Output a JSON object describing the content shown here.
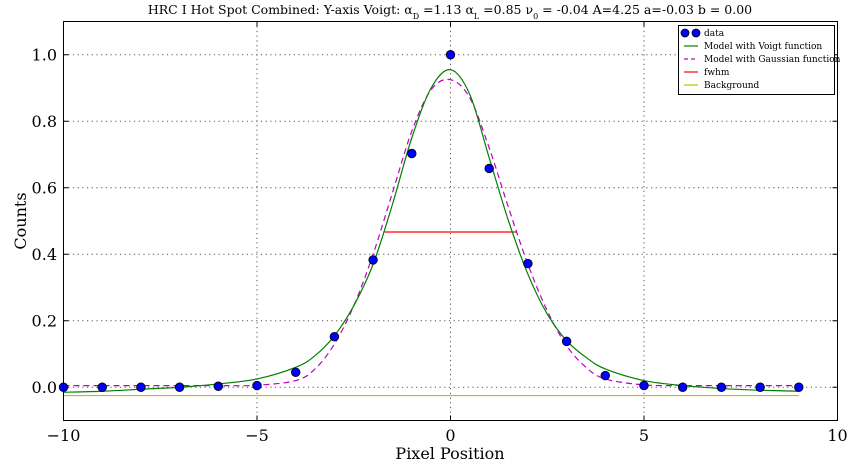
{
  "chart_data": {
    "type": "line",
    "title": "HRC I Hot Spot Combined: Y-axis  Voigt: α_D =1.13 α_L =0.85 ν_0 = -0.04 A=4.25  a=-0.03 b = 0.00",
    "title_parts": {
      "prefix": "HRC I Hot Spot Combined: Y-axis  Voigt: ",
      "alpha_d_symbol": "α",
      "alpha_d_sub": "D",
      "alpha_d_value": " =1.13 ",
      "alpha_l_symbol": "α",
      "alpha_l_sub": "L",
      "alpha_l_value": " =0.85 ",
      "nu0_symbol": "ν",
      "nu0_sub": "0",
      "rest": " = -0.04 A=4.25  a=-0.03 b = 0.00"
    },
    "xlabel": "Pixel Position",
    "ylabel": "Counts",
    "xlim": [
      -10,
      10
    ],
    "ylim": [
      -0.1,
      1.1
    ],
    "x_ticks": [
      -10,
      -5,
      0,
      5,
      10
    ],
    "y_ticks": [
      0.0,
      0.2,
      0.4,
      0.6,
      0.8,
      1.0
    ],
    "x_tick_labels": [
      "−10",
      "−5",
      "0",
      "5",
      "10"
    ],
    "y_tick_labels": [
      "0.0",
      "0.2",
      "0.4",
      "0.6",
      "0.8",
      "1.0"
    ],
    "grid": true,
    "legend_position": "top-right",
    "voigt_params": {
      "alpha_d": 1.13,
      "alpha_l": 0.85,
      "nu0": -0.04,
      "A": 4.25,
      "a": -0.03,
      "b": 0.0
    },
    "series": [
      {
        "name": "data",
        "kind": "scatter",
        "color": "#0000ff",
        "x": [
          -10,
          -9,
          -8,
          -7,
          -6,
          -5,
          -4,
          -3,
          -2,
          -1,
          0,
          1,
          2,
          3,
          4,
          5,
          6,
          7,
          8,
          9
        ],
        "y": [
          0.0,
          0.0,
          0.0,
          0.0,
          0.003,
          0.005,
          0.045,
          0.152,
          0.383,
          0.703,
          1.0,
          0.658,
          0.372,
          0.138,
          0.035,
          0.005,
          0.0,
          0.0,
          0.0,
          0.0
        ]
      },
      {
        "name": "Model with Voigt function",
        "kind": "line",
        "color": "#008000",
        "x": [
          -10,
          -9,
          -8,
          -7,
          -6,
          -5,
          -4,
          -3.5,
          -3,
          -2.5,
          -2,
          -1.5,
          -1,
          -0.5,
          0,
          0.5,
          1,
          1.5,
          2,
          2.5,
          3,
          3.5,
          4,
          5,
          6,
          7,
          8,
          9
        ],
        "y": [
          -0.015,
          -0.012,
          -0.006,
          0.0,
          0.01,
          0.025,
          0.06,
          0.095,
          0.155,
          0.245,
          0.37,
          0.55,
          0.75,
          0.9,
          0.955,
          0.88,
          0.69,
          0.5,
          0.34,
          0.22,
          0.14,
          0.09,
          0.055,
          0.02,
          0.005,
          -0.004,
          -0.009,
          -0.012
        ]
      },
      {
        "name": "Model with Gaussian function",
        "kind": "dashed",
        "color": "#c000c0",
        "x": [
          -10,
          -9,
          -8,
          -7,
          -6,
          -5,
          -4,
          -3.5,
          -3,
          -2.5,
          -2,
          -1.5,
          -1,
          -0.5,
          0,
          0.5,
          1,
          1.5,
          2,
          2.5,
          3,
          3.5,
          4,
          5,
          6,
          7,
          8,
          9
        ],
        "y": [
          0.005,
          0.005,
          0.005,
          0.005,
          0.005,
          0.006,
          0.02,
          0.055,
          0.13,
          0.245,
          0.4,
          0.585,
          0.77,
          0.895,
          0.925,
          0.87,
          0.72,
          0.54,
          0.37,
          0.23,
          0.125,
          0.06,
          0.025,
          0.007,
          0.005,
          0.005,
          0.005,
          0.005
        ]
      },
      {
        "name": "fwhm",
        "kind": "line",
        "color": "#ff0000",
        "x": [
          -1.7,
          1.7
        ],
        "y": [
          0.467,
          0.467
        ]
      },
      {
        "name": "Background",
        "kind": "line",
        "color": "#bfbf00",
        "x": [
          -10,
          9
        ],
        "y": [
          -0.025,
          -0.025
        ]
      }
    ]
  }
}
